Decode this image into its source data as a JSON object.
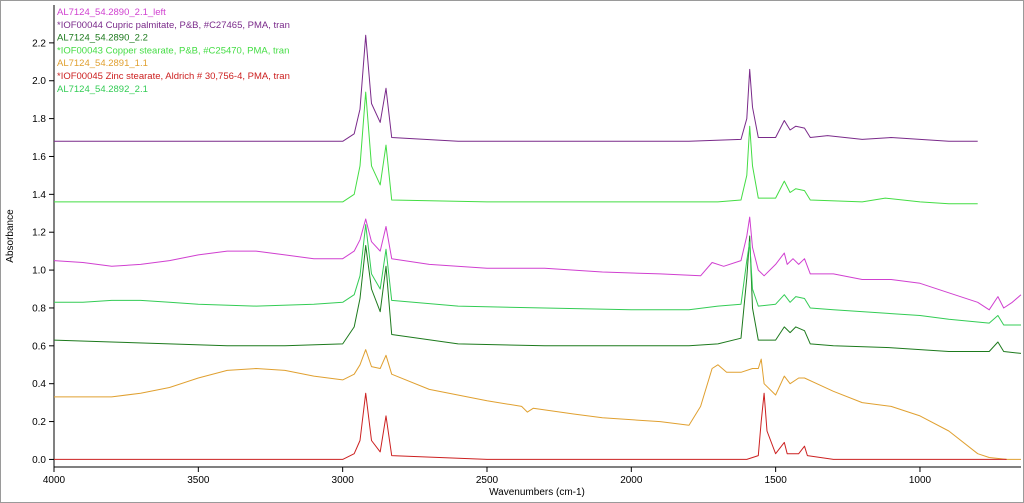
{
  "chart_data": {
    "type": "line",
    "xlabel": "Wavenumbers (cm-1)",
    "ylabel": "Absorbance",
    "x_reversed": true,
    "xlim": [
      4000,
      650
    ],
    "ylim": [
      -0.04,
      2.4
    ],
    "x_ticks": [
      4000,
      3500,
      3000,
      2500,
      2000,
      1500,
      1000
    ],
    "y_ticks": [
      0.0,
      0.2,
      0.4,
      0.6,
      0.8,
      1.0,
      1.2,
      1.4,
      1.6,
      1.8,
      2.0,
      2.2
    ],
    "grid": false,
    "legend_position": "top-left",
    "series": [
      {
        "name": "AL7124_54.2890_2.1_left",
        "color": "#d040d0",
        "points": [
          [
            4000,
            1.05
          ],
          [
            3900,
            1.04
          ],
          [
            3800,
            1.02
          ],
          [
            3700,
            1.03
          ],
          [
            3600,
            1.05
          ],
          [
            3500,
            1.08
          ],
          [
            3400,
            1.1
          ],
          [
            3300,
            1.1
          ],
          [
            3200,
            1.08
          ],
          [
            3100,
            1.06
          ],
          [
            3000,
            1.06
          ],
          [
            2960,
            1.1
          ],
          [
            2940,
            1.16
          ],
          [
            2920,
            1.27
          ],
          [
            2900,
            1.15
          ],
          [
            2870,
            1.1
          ],
          [
            2850,
            1.23
          ],
          [
            2830,
            1.06
          ],
          [
            2700,
            1.03
          ],
          [
            2500,
            1.01
          ],
          [
            2300,
            1.01
          ],
          [
            2100,
            0.99
          ],
          [
            1900,
            0.98
          ],
          [
            1760,
            0.97
          ],
          [
            1720,
            1.04
          ],
          [
            1680,
            1.02
          ],
          [
            1620,
            1.05
          ],
          [
            1600,
            1.18
          ],
          [
            1590,
            1.28
          ],
          [
            1580,
            1.12
          ],
          [
            1560,
            1.0
          ],
          [
            1540,
            0.97
          ],
          [
            1500,
            1.03
          ],
          [
            1470,
            1.09
          ],
          [
            1460,
            1.03
          ],
          [
            1440,
            1.06
          ],
          [
            1420,
            1.03
          ],
          [
            1400,
            1.06
          ],
          [
            1380,
            0.98
          ],
          [
            1300,
            0.98
          ],
          [
            1200,
            0.95
          ],
          [
            1100,
            0.95
          ],
          [
            1000,
            0.93
          ],
          [
            900,
            0.88
          ],
          [
            800,
            0.83
          ],
          [
            760,
            0.79
          ],
          [
            730,
            0.86
          ],
          [
            710,
            0.8
          ],
          [
            680,
            0.83
          ],
          [
            650,
            0.87
          ]
        ]
      },
      {
        "name": "*IOF00044 Cupric palmitate, P&B, #C27465, PMA, tran",
        "color": "#7a2a8a",
        "points": [
          [
            4000,
            1.68
          ],
          [
            3500,
            1.68
          ],
          [
            3000,
            1.68
          ],
          [
            2960,
            1.72
          ],
          [
            2940,
            1.85
          ],
          [
            2920,
            2.24
          ],
          [
            2900,
            1.88
          ],
          [
            2870,
            1.78
          ],
          [
            2850,
            1.96
          ],
          [
            2830,
            1.7
          ],
          [
            2600,
            1.68
          ],
          [
            2200,
            1.68
          ],
          [
            1800,
            1.68
          ],
          [
            1620,
            1.69
          ],
          [
            1600,
            1.8
          ],
          [
            1590,
            2.06
          ],
          [
            1580,
            1.86
          ],
          [
            1560,
            1.7
          ],
          [
            1500,
            1.7
          ],
          [
            1470,
            1.79
          ],
          [
            1450,
            1.74
          ],
          [
            1430,
            1.76
          ],
          [
            1400,
            1.75
          ],
          [
            1380,
            1.7
          ],
          [
            1320,
            1.71
          ],
          [
            1200,
            1.69
          ],
          [
            1100,
            1.7
          ],
          [
            1000,
            1.69
          ],
          [
            900,
            1.68
          ],
          [
            800,
            1.68
          ]
        ]
      },
      {
        "name": "AL7124_54.2890_2.2",
        "color": "#1d7a1d",
        "points": [
          [
            4000,
            0.63
          ],
          [
            3800,
            0.62
          ],
          [
            3600,
            0.61
          ],
          [
            3400,
            0.6
          ],
          [
            3200,
            0.6
          ],
          [
            3000,
            0.61
          ],
          [
            2960,
            0.7
          ],
          [
            2940,
            0.85
          ],
          [
            2920,
            1.13
          ],
          [
            2900,
            0.9
          ],
          [
            2870,
            0.78
          ],
          [
            2850,
            1.02
          ],
          [
            2830,
            0.66
          ],
          [
            2600,
            0.61
          ],
          [
            2300,
            0.6
          ],
          [
            2000,
            0.6
          ],
          [
            1800,
            0.6
          ],
          [
            1700,
            0.61
          ],
          [
            1620,
            0.64
          ],
          [
            1600,
            0.96
          ],
          [
            1590,
            1.18
          ],
          [
            1580,
            0.8
          ],
          [
            1560,
            0.63
          ],
          [
            1500,
            0.63
          ],
          [
            1470,
            0.7
          ],
          [
            1450,
            0.67
          ],
          [
            1430,
            0.7
          ],
          [
            1400,
            0.68
          ],
          [
            1380,
            0.61
          ],
          [
            1300,
            0.6
          ],
          [
            1100,
            0.59
          ],
          [
            1000,
            0.58
          ],
          [
            900,
            0.57
          ],
          [
            760,
            0.57
          ],
          [
            730,
            0.62
          ],
          [
            710,
            0.57
          ],
          [
            650,
            0.56
          ]
        ]
      },
      {
        "name": "*IOF00043 Copper stearate, P&B, #C25470, PMA, tran",
        "color": "#44dd44",
        "points": [
          [
            4000,
            1.36
          ],
          [
            3500,
            1.36
          ],
          [
            3000,
            1.36
          ],
          [
            2960,
            1.4
          ],
          [
            2940,
            1.55
          ],
          [
            2920,
            1.94
          ],
          [
            2900,
            1.55
          ],
          [
            2870,
            1.45
          ],
          [
            2850,
            1.66
          ],
          [
            2830,
            1.37
          ],
          [
            2500,
            1.36
          ],
          [
            2000,
            1.36
          ],
          [
            1700,
            1.36
          ],
          [
            1620,
            1.37
          ],
          [
            1600,
            1.5
          ],
          [
            1590,
            1.76
          ],
          [
            1580,
            1.55
          ],
          [
            1560,
            1.38
          ],
          [
            1500,
            1.38
          ],
          [
            1470,
            1.47
          ],
          [
            1450,
            1.41
          ],
          [
            1430,
            1.43
          ],
          [
            1400,
            1.42
          ],
          [
            1380,
            1.37
          ],
          [
            1200,
            1.36
          ],
          [
            1120,
            1.38
          ],
          [
            1000,
            1.36
          ],
          [
            900,
            1.35
          ],
          [
            800,
            1.35
          ]
        ]
      },
      {
        "name": "AL7124_54.2891_1.1",
        "color": "#e0a030",
        "points": [
          [
            4000,
            0.33
          ],
          [
            3800,
            0.33
          ],
          [
            3700,
            0.35
          ],
          [
            3600,
            0.38
          ],
          [
            3500,
            0.43
          ],
          [
            3400,
            0.47
          ],
          [
            3300,
            0.48
          ],
          [
            3200,
            0.47
          ],
          [
            3100,
            0.44
          ],
          [
            3000,
            0.42
          ],
          [
            2960,
            0.45
          ],
          [
            2940,
            0.5
          ],
          [
            2920,
            0.58
          ],
          [
            2900,
            0.49
          ],
          [
            2870,
            0.48
          ],
          [
            2850,
            0.55
          ],
          [
            2830,
            0.45
          ],
          [
            2700,
            0.37
          ],
          [
            2500,
            0.31
          ],
          [
            2380,
            0.28
          ],
          [
            2360,
            0.25
          ],
          [
            2340,
            0.27
          ],
          [
            2200,
            0.24
          ],
          [
            2100,
            0.22
          ],
          [
            1900,
            0.2
          ],
          [
            1800,
            0.18
          ],
          [
            1760,
            0.28
          ],
          [
            1720,
            0.48
          ],
          [
            1700,
            0.5
          ],
          [
            1670,
            0.46
          ],
          [
            1620,
            0.46
          ],
          [
            1580,
            0.48
          ],
          [
            1560,
            0.48
          ],
          [
            1550,
            0.53
          ],
          [
            1540,
            0.4
          ],
          [
            1500,
            0.34
          ],
          [
            1470,
            0.44
          ],
          [
            1450,
            0.4
          ],
          [
            1420,
            0.43
          ],
          [
            1400,
            0.43
          ],
          [
            1300,
            0.36
          ],
          [
            1200,
            0.3
          ],
          [
            1100,
            0.28
          ],
          [
            1000,
            0.23
          ],
          [
            900,
            0.15
          ],
          [
            800,
            0.03
          ],
          [
            760,
            0.01
          ],
          [
            700,
            0.0
          ],
          [
            650,
            0.0
          ]
        ]
      },
      {
        "name": "*IOF00045 Zinc stearate, Aldrich # 30,756-4, PMA, tran",
        "color": "#cc2020",
        "points": [
          [
            4000,
            0.0
          ],
          [
            3500,
            0.0
          ],
          [
            3000,
            0.0
          ],
          [
            2960,
            0.03
          ],
          [
            2940,
            0.1
          ],
          [
            2920,
            0.35
          ],
          [
            2900,
            0.1
          ],
          [
            2870,
            0.04
          ],
          [
            2850,
            0.23
          ],
          [
            2830,
            0.02
          ],
          [
            2500,
            0.0
          ],
          [
            2000,
            0.0
          ],
          [
            1700,
            0.0
          ],
          [
            1600,
            0.0
          ],
          [
            1560,
            0.02
          ],
          [
            1550,
            0.2
          ],
          [
            1540,
            0.35
          ],
          [
            1530,
            0.15
          ],
          [
            1500,
            0.03
          ],
          [
            1470,
            0.09
          ],
          [
            1460,
            0.03
          ],
          [
            1420,
            0.03
          ],
          [
            1400,
            0.07
          ],
          [
            1390,
            0.02
          ],
          [
            1300,
            0.0
          ],
          [
            1000,
            0.0
          ],
          [
            800,
            0.0
          ],
          [
            700,
            0.0
          ]
        ]
      },
      {
        "name": "AL7124_54.2892_2.1",
        "color": "#33cc55",
        "points": [
          [
            4000,
            0.83
          ],
          [
            3900,
            0.83
          ],
          [
            3800,
            0.84
          ],
          [
            3700,
            0.84
          ],
          [
            3600,
            0.83
          ],
          [
            3500,
            0.82
          ],
          [
            3300,
            0.81
          ],
          [
            3100,
            0.82
          ],
          [
            3000,
            0.83
          ],
          [
            2960,
            0.87
          ],
          [
            2940,
            0.97
          ],
          [
            2920,
            1.24
          ],
          [
            2900,
            0.98
          ],
          [
            2870,
            0.9
          ],
          [
            2850,
            1.11
          ],
          [
            2830,
            0.84
          ],
          [
            2600,
            0.81
          ],
          [
            2300,
            0.8
          ],
          [
            2000,
            0.79
          ],
          [
            1800,
            0.79
          ],
          [
            1700,
            0.81
          ],
          [
            1620,
            0.82
          ],
          [
            1600,
            1.05
          ],
          [
            1590,
            1.15
          ],
          [
            1580,
            0.9
          ],
          [
            1560,
            0.81
          ],
          [
            1500,
            0.82
          ],
          [
            1470,
            0.87
          ],
          [
            1450,
            0.83
          ],
          [
            1430,
            0.86
          ],
          [
            1400,
            0.85
          ],
          [
            1380,
            0.8
          ],
          [
            1300,
            0.79
          ],
          [
            1100,
            0.77
          ],
          [
            1000,
            0.76
          ],
          [
            900,
            0.74
          ],
          [
            760,
            0.72
          ],
          [
            730,
            0.76
          ],
          [
            710,
            0.71
          ],
          [
            650,
            0.71
          ]
        ]
      }
    ]
  }
}
